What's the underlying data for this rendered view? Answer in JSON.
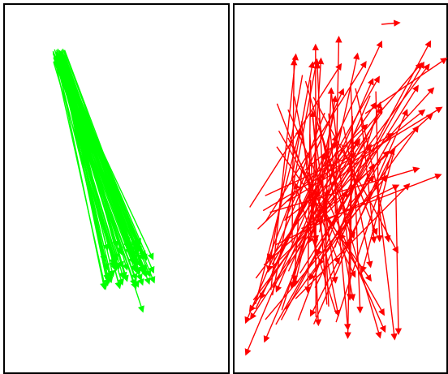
{
  "panels": [
    {
      "id": "left",
      "color": "#00ff00"
    },
    {
      "id": "right",
      "color": "#ff0000"
    }
  ]
}
